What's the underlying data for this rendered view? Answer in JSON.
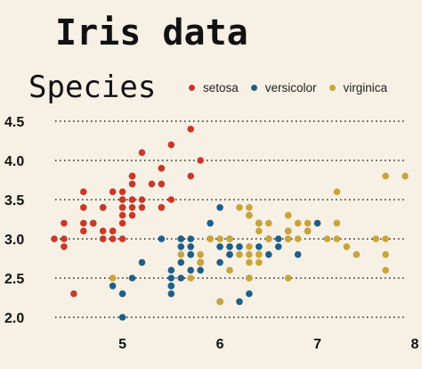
{
  "colors": {
    "background": "#f7f1e5",
    "setosa": "#c8392b",
    "versicolor": "#1d5f8a",
    "virginica": "#c9a43a",
    "gridline": "#222222"
  },
  "legend": {
    "title": "Species",
    "items": [
      {
        "label": "setosa",
        "color": "#c8392b"
      },
      {
        "label": "versicolor",
        "color": "#1d5f8a"
      },
      {
        "label": "virginica",
        "color": "#c9a43a"
      }
    ]
  },
  "chart_data": {
    "type": "scatter",
    "title": "Iris data",
    "xlabel": "",
    "ylabel": "",
    "xlim": [
      4.2,
      8.0
    ],
    "ylim": [
      2.0,
      4.5
    ],
    "xticks": [
      5,
      6,
      7,
      8
    ],
    "yticks": [
      2.0,
      2.5,
      3.0,
      3.5,
      4.0,
      4.5
    ],
    "grid": "horizontal-dotted",
    "legend_position": "top",
    "series": [
      {
        "name": "setosa",
        "color": "#c8392b",
        "points": [
          [
            5.1,
            3.5
          ],
          [
            4.9,
            3.0
          ],
          [
            4.7,
            3.2
          ],
          [
            4.6,
            3.1
          ],
          [
            5.0,
            3.6
          ],
          [
            5.4,
            3.9
          ],
          [
            4.6,
            3.4
          ],
          [
            5.0,
            3.4
          ],
          [
            4.4,
            2.9
          ],
          [
            4.9,
            3.1
          ],
          [
            5.4,
            3.7
          ],
          [
            4.8,
            3.4
          ],
          [
            4.8,
            3.0
          ],
          [
            4.3,
            3.0
          ],
          [
            5.8,
            4.0
          ],
          [
            5.7,
            4.4
          ],
          [
            5.4,
            3.9
          ],
          [
            5.1,
            3.5
          ],
          [
            5.7,
            3.8
          ],
          [
            5.1,
            3.8
          ],
          [
            5.4,
            3.4
          ],
          [
            5.1,
            3.7
          ],
          [
            4.6,
            3.6
          ],
          [
            5.1,
            3.3
          ],
          [
            4.8,
            3.4
          ],
          [
            5.0,
            3.0
          ],
          [
            5.0,
            3.4
          ],
          [
            5.2,
            3.5
          ],
          [
            5.2,
            3.4
          ],
          [
            4.7,
            3.2
          ],
          [
            4.8,
            3.1
          ],
          [
            5.4,
            3.4
          ],
          [
            5.2,
            4.1
          ],
          [
            5.5,
            4.2
          ],
          [
            4.9,
            3.1
          ],
          [
            5.0,
            3.2
          ],
          [
            5.5,
            3.5
          ],
          [
            4.9,
            3.6
          ],
          [
            4.4,
            3.0
          ],
          [
            5.1,
            3.4
          ],
          [
            5.0,
            3.5
          ],
          [
            4.5,
            2.3
          ],
          [
            4.4,
            3.2
          ],
          [
            5.0,
            3.5
          ],
          [
            5.1,
            3.8
          ],
          [
            4.8,
            3.0
          ],
          [
            5.1,
            3.8
          ],
          [
            4.6,
            3.2
          ],
          [
            5.3,
            3.7
          ],
          [
            5.0,
            3.3
          ]
        ]
      },
      {
        "name": "versicolor",
        "color": "#1d5f8a",
        "points": [
          [
            7.0,
            3.2
          ],
          [
            6.4,
            3.2
          ],
          [
            6.9,
            3.1
          ],
          [
            5.5,
            2.3
          ],
          [
            6.5,
            2.8
          ],
          [
            5.7,
            2.8
          ],
          [
            6.3,
            3.3
          ],
          [
            4.9,
            2.4
          ],
          [
            6.6,
            2.9
          ],
          [
            5.2,
            2.7
          ],
          [
            5.0,
            2.0
          ],
          [
            5.9,
            3.0
          ],
          [
            6.0,
            2.2
          ],
          [
            6.1,
            2.9
          ],
          [
            5.6,
            2.9
          ],
          [
            6.7,
            3.1
          ],
          [
            5.6,
            3.0
          ],
          [
            5.8,
            2.7
          ],
          [
            6.2,
            2.2
          ],
          [
            5.6,
            2.5
          ],
          [
            5.9,
            3.2
          ],
          [
            6.1,
            2.8
          ],
          [
            6.3,
            2.5
          ],
          [
            6.1,
            2.8
          ],
          [
            6.4,
            2.9
          ],
          [
            6.6,
            3.0
          ],
          [
            6.8,
            2.8
          ],
          [
            6.7,
            3.0
          ],
          [
            6.0,
            2.9
          ],
          [
            5.7,
            2.6
          ],
          [
            5.5,
            2.4
          ],
          [
            5.5,
            2.4
          ],
          [
            5.8,
            2.7
          ],
          [
            6.0,
            2.7
          ],
          [
            5.4,
            3.0
          ],
          [
            6.0,
            3.4
          ],
          [
            6.7,
            3.1
          ],
          [
            6.3,
            2.3
          ],
          [
            5.6,
            3.0
          ],
          [
            5.5,
            2.5
          ],
          [
            5.5,
            2.6
          ],
          [
            6.1,
            3.0
          ],
          [
            5.8,
            2.6
          ],
          [
            5.0,
            2.3
          ],
          [
            5.6,
            2.7
          ],
          [
            5.7,
            3.0
          ],
          [
            5.7,
            2.9
          ],
          [
            6.2,
            2.9
          ],
          [
            5.1,
            2.5
          ],
          [
            5.7,
            2.8
          ]
        ]
      },
      {
        "name": "virginica",
        "color": "#c9a43a",
        "points": [
          [
            6.3,
            3.3
          ],
          [
            5.8,
            2.7
          ],
          [
            7.1,
            3.0
          ],
          [
            6.3,
            2.9
          ],
          [
            6.5,
            3.0
          ],
          [
            7.6,
            3.0
          ],
          [
            4.9,
            2.5
          ],
          [
            7.3,
            2.9
          ],
          [
            6.7,
            2.5
          ],
          [
            7.2,
            3.6
          ],
          [
            6.5,
            3.2
          ],
          [
            6.4,
            2.7
          ],
          [
            6.8,
            3.0
          ],
          [
            5.7,
            2.5
          ],
          [
            5.8,
            2.8
          ],
          [
            6.4,
            3.2
          ],
          [
            6.5,
            3.0
          ],
          [
            7.7,
            3.8
          ],
          [
            7.7,
            2.6
          ],
          [
            6.0,
            2.2
          ],
          [
            6.9,
            3.2
          ],
          [
            5.6,
            2.8
          ],
          [
            7.7,
            2.8
          ],
          [
            6.3,
            2.7
          ],
          [
            6.7,
            3.3
          ],
          [
            7.2,
            3.2
          ],
          [
            6.2,
            2.8
          ],
          [
            6.1,
            3.0
          ],
          [
            6.4,
            2.8
          ],
          [
            7.2,
            3.0
          ],
          [
            7.4,
            2.8
          ],
          [
            7.9,
            3.8
          ],
          [
            6.4,
            2.8
          ],
          [
            6.3,
            2.8
          ],
          [
            6.1,
            2.6
          ],
          [
            7.7,
            3.0
          ],
          [
            6.3,
            3.4
          ],
          [
            6.4,
            3.1
          ],
          [
            6.0,
            3.0
          ],
          [
            6.9,
            3.1
          ],
          [
            6.7,
            3.1
          ],
          [
            6.9,
            3.1
          ],
          [
            5.8,
            2.7
          ],
          [
            6.8,
            3.2
          ],
          [
            6.7,
            3.3
          ],
          [
            6.7,
            3.0
          ],
          [
            6.3,
            2.5
          ],
          [
            6.5,
            3.0
          ],
          [
            6.2,
            3.4
          ],
          [
            5.9,
            3.0
          ]
        ]
      }
    ]
  }
}
